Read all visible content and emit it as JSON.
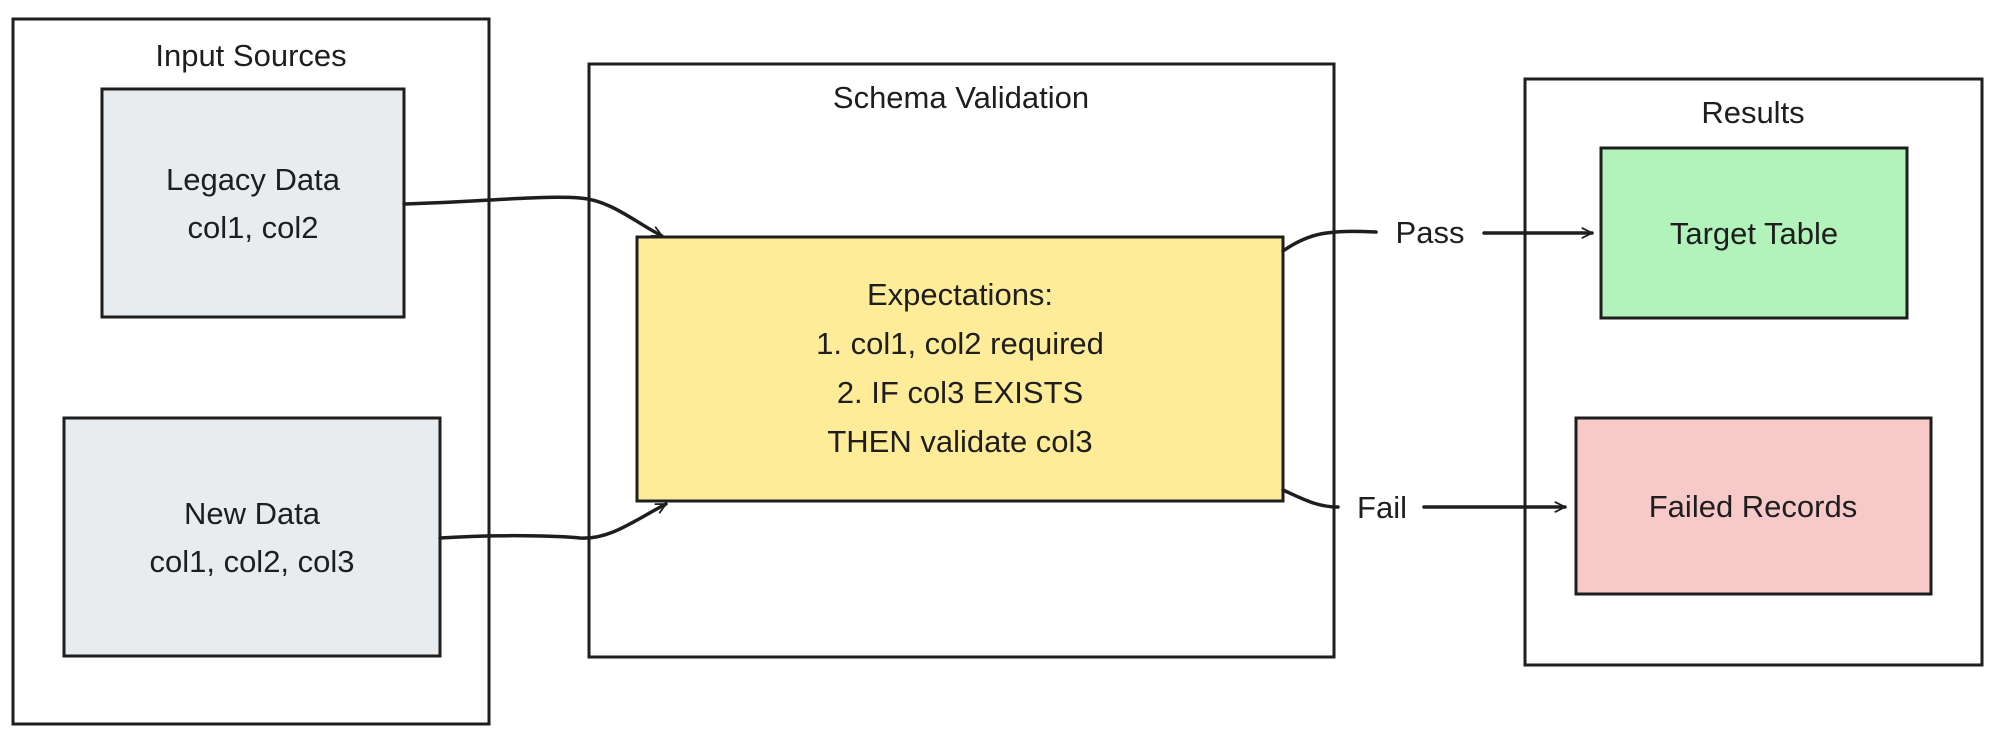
{
  "groups": {
    "input": {
      "title": "Input Sources"
    },
    "validation": {
      "title": "Schema Validation"
    },
    "results": {
      "title": "Results"
    }
  },
  "nodes": {
    "legacy": {
      "lines": [
        "Legacy Data",
        "col1, col2"
      ],
      "color": "#e9ecef"
    },
    "new": {
      "lines": [
        "New Data",
        "col1, col2, col3"
      ],
      "color": "#e9ecef"
    },
    "expectations": {
      "lines": [
        "Expectations:",
        "1. col1, col2 required",
        "2. IF col3 EXISTS",
        "THEN validate col3"
      ],
      "color": "#ffec99"
    },
    "target": {
      "lines": [
        "Target Table"
      ],
      "color": "#b2f2bb"
    },
    "failed": {
      "lines": [
        "Failed Records"
      ],
      "color": "#f8c9c9"
    }
  },
  "edges": {
    "pass": {
      "label": "Pass"
    },
    "fail": {
      "label": "Fail"
    }
  }
}
